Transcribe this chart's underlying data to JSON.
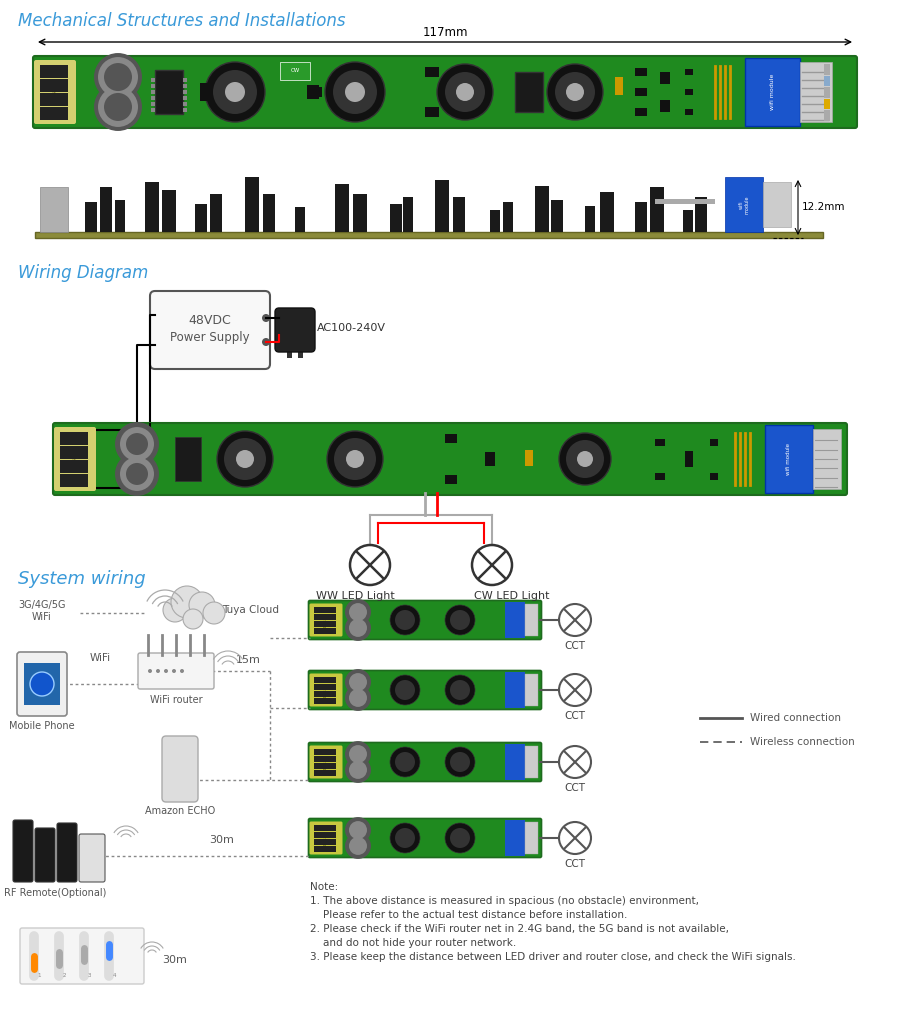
{
  "title": "Mechanical Structures and Installations",
  "title_color": "#3a9ad9",
  "title_fontsize": 12,
  "bg_color": "#ffffff",
  "section2_title": "Wiring Diagram",
  "section2_color": "#3a9ad9",
  "section2_fontsize": 12,
  "section3_title": "System wiring",
  "section3_color": "#3a9ad9",
  "section3_fontsize": 13,
  "dim_117": "117mm",
  "dim_122": "12.2mm",
  "note_text": "Note:\n1. The above distance is measured in spacious (no obstacle) environment,\n    Please refer to the actual test distance before installation.\n2. Please check if the WiFi router net in 2.4G band, the 5G band is not available,\n    and do not hide your router network.\n3. Please keep the distance between LED driver and router close, and check the WiFi signals.",
  "wired_label": "Wired connection",
  "wireless_label": "Wireless connection",
  "labels_15m": "15m",
  "labels_30m": "30m",
  "wifi_label": "WiFi",
  "mobile_label": "Mobile Phone",
  "router_label": "WiFi router",
  "echo_label": "Amazon ECHO",
  "rf_label": "RF Remote(Optional)",
  "tuya_label": "Tuya Cloud",
  "network_label": "3G/4G/5G\nWiFi",
  "cct_label": "CCT",
  "ww_label": "WW LED Light",
  "cw_label": "CW LED Light",
  "ac_label": "AC100-240V",
  "ps_label1": "48VDC",
  "ps_label2": "Power Supply"
}
